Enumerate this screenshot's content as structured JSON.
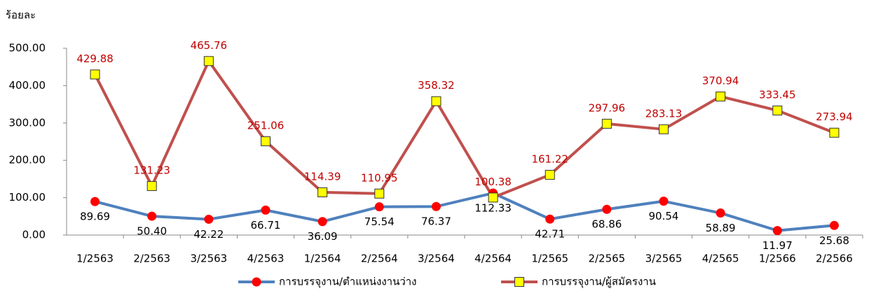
{
  "chart_data": {
    "type": "line",
    "y_label": "ร้อยละ",
    "categories": [
      "1/2563",
      "2/2563",
      "3/2563",
      "4/2563",
      "1/2564",
      "2/2564",
      "3/2564",
      "4/2564",
      "1/2565",
      "2/2565",
      "3/2565",
      "4/2565",
      "1/2566",
      "2/2566"
    ],
    "series": [
      {
        "name": "การบรรจุงาน/ตำแหน่งงานว่าง",
        "color": "#4f81bd",
        "marker": "circle",
        "marker_color": "#ff0000",
        "label_color": "#000000",
        "values": [
          89.69,
          50.4,
          42.22,
          66.71,
          36.09,
          75.54,
          76.37,
          112.33,
          42.71,
          68.86,
          90.54,
          58.89,
          11.97,
          25.68
        ],
        "value_labels": [
          "89.69",
          "50.40",
          "42.22",
          "66.71",
          "36.09",
          "75.54",
          "76.37",
          "112.33",
          "42.71",
          "68.86",
          "90.54",
          "58.89",
          "11.97",
          "25.68"
        ]
      },
      {
        "name": "การบรรจุงาน/ผู้สมัครงาน",
        "color": "#c0504d",
        "marker": "square",
        "marker_color": "#ffff00",
        "label_color": "#c00000",
        "values": [
          429.88,
          131.23,
          465.76,
          251.06,
          114.39,
          110.95,
          358.32,
          100.38,
          161.22,
          297.96,
          283.13,
          370.94,
          333.45,
          273.94
        ],
        "value_labels": [
          "429.88",
          "131.23",
          "465.76",
          "251.06",
          "114.39",
          "110.95",
          "358.32",
          "100.38",
          "161.22",
          "297.96",
          "283.13",
          "370.94",
          "333.45",
          "273.94"
        ]
      }
    ],
    "ylim": [
      0,
      500
    ],
    "yticks": [
      {
        "value": 0,
        "label": "0.00"
      },
      {
        "value": 100,
        "label": "100.00"
      },
      {
        "value": 200,
        "label": "200.00"
      },
      {
        "value": 300,
        "label": "300.00"
      },
      {
        "value": 400,
        "label": "400.00"
      },
      {
        "value": 500,
        "label": "500.00"
      }
    ],
    "legend": "bottom"
  }
}
